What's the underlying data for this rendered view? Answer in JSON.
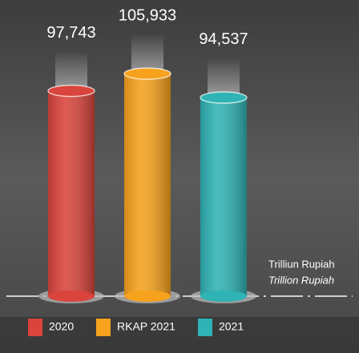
{
  "chart_data": {
    "type": "bar",
    "categories": [
      "2020",
      "RKAP 2021",
      "2021"
    ],
    "values": [
      97743,
      105933,
      94537
    ],
    "value_labels": [
      "97,743",
      "105,933",
      "94,537"
    ],
    "colors": [
      "#d9443c",
      "#f7a21d",
      "#2fb3b5"
    ],
    "unit_label": [
      "Trilliun Rupiah",
      "Trillion Rupiah"
    ]
  }
}
